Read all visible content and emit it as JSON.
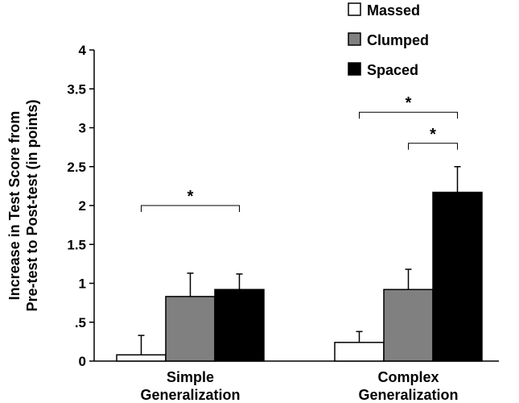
{
  "chart_data": {
    "type": "bar",
    "title": "",
    "xlabel": "",
    "ylabel_lines": [
      "Increase in Test Score from",
      "Pre-test to Post-test (in points)"
    ],
    "ylim": [
      0,
      4
    ],
    "yticks": [
      0,
      0.5,
      1,
      1.5,
      2,
      2.5,
      3,
      3.5,
      4
    ],
    "ytick_labels": [
      "0",
      ".5",
      "1",
      "1.5",
      "2",
      "2.5",
      "3",
      "3.5",
      "4"
    ],
    "categories": [
      [
        "Simple",
        "Generalization"
      ],
      [
        "Complex",
        "Generalization"
      ]
    ],
    "series": [
      {
        "name": "Massed",
        "values": [
          0.08,
          0.24
        ],
        "errors": [
          0.25,
          0.14
        ],
        "color": "#ffffff"
      },
      {
        "name": "Clumped",
        "values": [
          0.83,
          0.92
        ],
        "errors": [
          0.3,
          0.26
        ],
        "color": "#808080"
      },
      {
        "name": "Spaced",
        "values": [
          0.92,
          2.17
        ],
        "errors": [
          0.2,
          0.33
        ],
        "color": "#000000"
      }
    ],
    "legend_position": "top-right",
    "significance": [
      {
        "category": 0,
        "from_series": 0,
        "to_series": 2,
        "y": 2.0,
        "label": "*"
      },
      {
        "category": 1,
        "from_series": 0,
        "to_series": 2,
        "y": 3.2,
        "label": "*"
      },
      {
        "category": 1,
        "from_series": 1,
        "to_series": 2,
        "y": 2.8,
        "label": "*"
      }
    ],
    "grid": false
  }
}
